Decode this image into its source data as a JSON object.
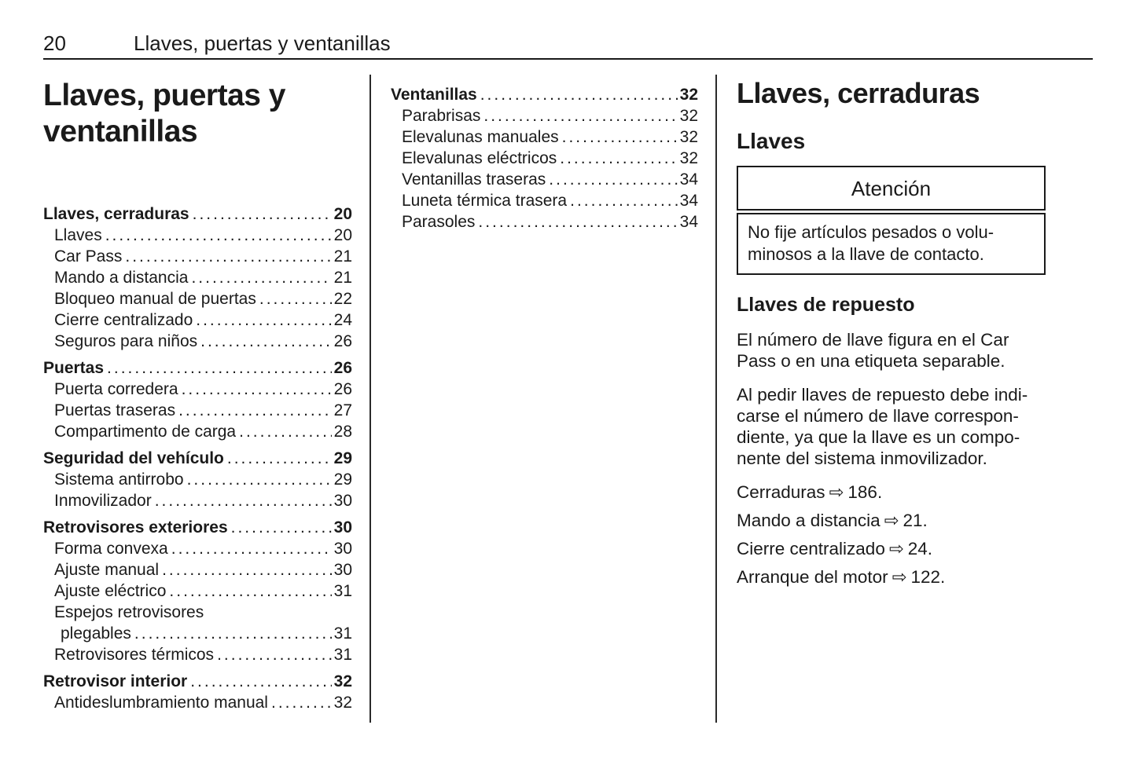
{
  "page_header": {
    "page_number": "20",
    "title": "Llaves, puertas y ventanillas"
  },
  "toc_leader": "................................................................................",
  "left_column": {
    "chapter_title": "Llaves, puertas y\nventanillas"
  },
  "toc": {
    "left": [
      {
        "label": "Llaves, cerraduras",
        "page": "20",
        "bold": true,
        "level": 0
      },
      {
        "label": "Llaves",
        "page": "20",
        "level": 1
      },
      {
        "label": "Car Pass",
        "page": "21",
        "level": 1
      },
      {
        "label": "Mando a distancia",
        "page": "21",
        "level": 1
      },
      {
        "label": "Bloqueo manual de puertas",
        "page": "22",
        "level": 1
      },
      {
        "label": "Cierre centralizado",
        "page": "24",
        "level": 1
      },
      {
        "label": "Seguros para niños",
        "page": "26",
        "level": 1
      },
      {
        "label": "Puertas",
        "page": "26",
        "bold": true,
        "level": 0,
        "gap": true
      },
      {
        "label": "Puerta corredera",
        "page": "26",
        "level": 1
      },
      {
        "label": "Puertas traseras",
        "page": "27",
        "level": 1
      },
      {
        "label": "Compartimento de carga",
        "page": "28",
        "level": 1
      },
      {
        "label": "Seguridad del vehículo",
        "page": "29",
        "bold": true,
        "level": 0,
        "gap": true
      },
      {
        "label": "Sistema antirrobo",
        "page": "29",
        "level": 1
      },
      {
        "label": "Inmovilizador",
        "page": "30",
        "level": 1
      },
      {
        "label": "Retrovisores exteriores",
        "page": "30",
        "bold": true,
        "level": 0,
        "gap": true
      },
      {
        "label": "Forma convexa",
        "page": "30",
        "level": 1
      },
      {
        "label": "Ajuste manual",
        "page": "30",
        "level": 1
      },
      {
        "label": "Ajuste eléctrico",
        "page": "31",
        "level": 1
      },
      {
        "label": "Espejos retrovisores",
        "page": null,
        "level": 1
      },
      {
        "label": "plegables",
        "page": "31",
        "level": 2
      },
      {
        "label": "Retrovisores térmicos",
        "page": "31",
        "level": 1
      },
      {
        "label": "Retrovisor interior",
        "page": "32",
        "bold": true,
        "level": 0,
        "gap": true
      },
      {
        "label": "Antideslumbramiento manual",
        "page": "32",
        "level": 1
      }
    ],
    "middle": [
      {
        "label": "Ventanillas",
        "page": "32",
        "bold": true,
        "level": 0
      },
      {
        "label": "Parabrisas",
        "page": "32",
        "level": 1
      },
      {
        "label": "Elevalunas manuales",
        "page": "32",
        "level": 1
      },
      {
        "label": "Elevalunas eléctricos",
        "page": "32",
        "level": 1
      },
      {
        "label": "Ventanillas traseras",
        "page": "34",
        "level": 1
      },
      {
        "label": "Luneta térmica trasera",
        "page": "34",
        "level": 1
      },
      {
        "label": "Parasoles",
        "page": "34",
        "level": 1
      }
    ]
  },
  "right_column": {
    "section_title": "Llaves, cerraduras",
    "subsection_title": "Llaves",
    "caution_box": {
      "title": "Atención",
      "body": "No fije artículos pesados o volu-\nminosos a la llave de contacto."
    },
    "sub_heading": "Llaves de repuesto",
    "paragraphs": [
      {
        "text": "El número de llave figura en el Car\nPass o en una etiqueta separable."
      },
      {
        "text": "Al pedir llaves de repuesto debe indi-\ncarse el número de llave correspon-\ndiente, ya que la llave es un compo-\nnente del sistema inmovilizador."
      }
    ],
    "references": [
      {
        "label": "Cerraduras",
        "page": "186."
      },
      {
        "label": "Mando a distancia",
        "page": "21."
      },
      {
        "label": "Cierre centralizado",
        "page": "24."
      },
      {
        "label": "Arranque del motor",
        "page": "122."
      }
    ]
  },
  "icons": {
    "page_ref_arrow": "⇨"
  }
}
